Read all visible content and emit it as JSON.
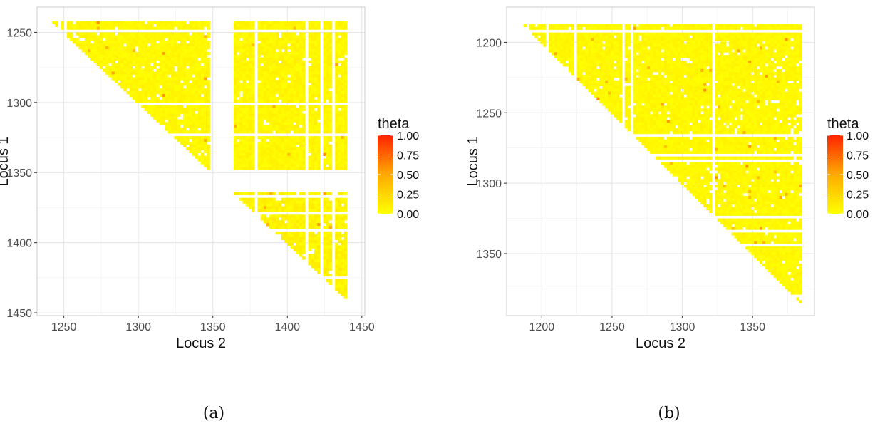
{
  "figure": {
    "panel_labels": [
      "(a)",
      "(b)"
    ]
  },
  "colors": {
    "low": "#ffff00",
    "mid": "#ffaa00",
    "high": "#ff2200",
    "grid": "#e5e5e5",
    "panel_border": "#cccccc"
  },
  "chart_data": [
    {
      "type": "heatmap",
      "panel": "(a)",
      "xlabel": "Locus 2",
      "ylabel": "Locus 1",
      "xlim": [
        1232,
        1452
      ],
      "ylim": [
        1452,
        1232
      ],
      "y_reversed": true,
      "x_ticks": [
        1250,
        1300,
        1350,
        1400,
        1450
      ],
      "y_ticks": [
        1250,
        1300,
        1350,
        1400,
        1450
      ],
      "grid": true,
      "legend": {
        "title": "theta",
        "placement": "right",
        "labels": [
          "1.00",
          "0.75",
          "0.50",
          "0.25",
          "0.00"
        ],
        "values": [
          1.0,
          0.75,
          0.5,
          0.25,
          0.0
        ]
      },
      "locus_range": [
        1242,
        1442
      ],
      "blocks": [
        {
          "x": [
            1242,
            1348
          ],
          "y": [
            1242,
            1348
          ],
          "shape": "upper-triangle",
          "theta_typical": 0.05
        },
        {
          "x": [
            1364,
            1442
          ],
          "y": [
            1242,
            1348
          ],
          "shape": "rectangle",
          "theta_typical": 0.06
        },
        {
          "x": [
            1364,
            1442
          ],
          "y": [
            1364,
            1442
          ],
          "shape": "upper-triangle",
          "theta_typical": 0.08
        }
      ],
      "gaps": [
        {
          "axis": "x",
          "range": [
            1348,
            1364
          ]
        },
        {
          "axis": "y",
          "range": [
            1348,
            1364
          ]
        }
      ]
    },
    {
      "type": "heatmap",
      "panel": "(b)",
      "xlabel": "Locus 2",
      "ylabel": "Locus 1",
      "xlim": [
        1175,
        1394
      ],
      "ylim": [
        1394,
        1175
      ],
      "y_reversed": true,
      "x_ticks": [
        1200,
        1250,
        1300,
        1350
      ],
      "y_ticks": [
        1200,
        1250,
        1300,
        1350
      ],
      "grid": true,
      "legend": {
        "title": "theta",
        "placement": "right",
        "labels": [
          "1.00",
          "0.75",
          "0.50",
          "0.25",
          "0.00"
        ],
        "values": [
          1.0,
          0.75,
          0.5,
          0.25,
          0.0
        ]
      },
      "locus_range": [
        1185,
        1385
      ],
      "blocks": [
        {
          "x": [
            1185,
            1385
          ],
          "y": [
            1185,
            1385
          ],
          "shape": "upper-triangle",
          "theta_typical": 0.05
        }
      ],
      "gaps": []
    }
  ]
}
